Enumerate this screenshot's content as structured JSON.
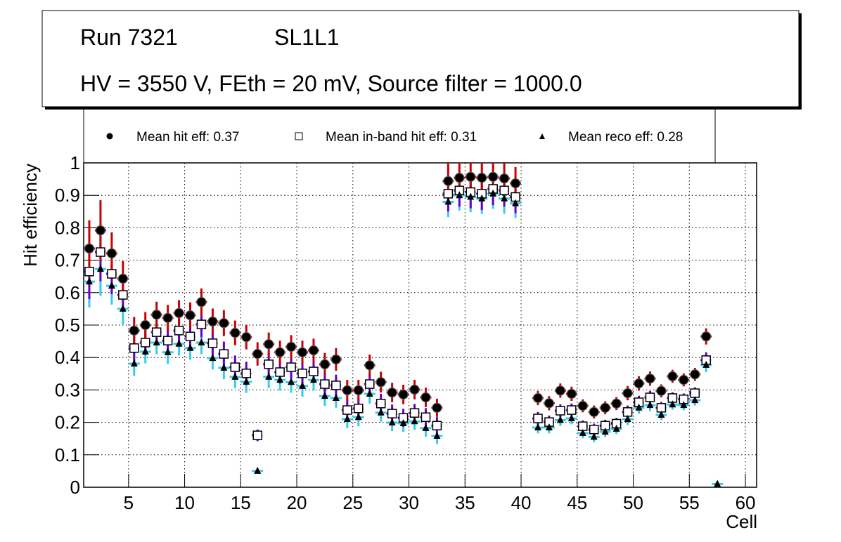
{
  "chart_data": {
    "type": "scatter",
    "title_box": {
      "line1_left": "Run 7321",
      "line1_right": "SL1L1",
      "line2": "HV = 3550 V, FEth = 20 mV, Source filter = 1000.0"
    },
    "xlabel": "Cell",
    "ylabel": "Hit efficiency",
    "xlim": [
      1,
      61
    ],
    "ylim": [
      0,
      1
    ],
    "xticks": [
      5,
      10,
      15,
      20,
      25,
      30,
      35,
      40,
      45,
      50,
      55,
      60
    ],
    "xtick_labels": [
      "5",
      "10",
      "15",
      "20",
      "25",
      "30",
      "35",
      "40",
      "45",
      "50",
      "55",
      "60"
    ],
    "yticks": [
      0,
      0.1,
      0.2,
      0.3,
      0.4,
      0.5,
      0.6,
      0.7,
      0.8,
      0.9,
      1
    ],
    "ytick_labels": [
      "0",
      "0.1",
      "0.2",
      "0.3",
      "0.4",
      "0.5",
      "0.6",
      "0.7",
      "0.8",
      "0.9",
      "1"
    ],
    "grid": true,
    "legend_position": "top",
    "legend": [
      {
        "marker": "filled-circle",
        "label": "Mean hit  eff: 0.37"
      },
      {
        "marker": "open-square",
        "label": "Mean in-band hit eff: 0.31"
      },
      {
        "marker": "filled-triangle",
        "label": "Mean reco eff: 0.28"
      }
    ],
    "colors": {
      "hit_error": "#cc0000",
      "inband_error": "#6600cc",
      "reco_error": "#33ccee",
      "marker": "#000000"
    },
    "series": [
      {
        "name": "Mean hit eff",
        "marker": "filled-circle",
        "x": [
          1.5,
          2.5,
          3.5,
          4.5,
          5.5,
          6.5,
          7.5,
          8.5,
          9.5,
          10.5,
          11.5,
          12.5,
          13.5,
          14.5,
          15.5,
          16.5,
          17.5,
          18.5,
          19.5,
          20.5,
          21.5,
          22.5,
          23.5,
          24.5,
          25.5,
          26.5,
          27.5,
          28.5,
          29.5,
          30.5,
          31.5,
          32.5,
          33.5,
          34.5,
          35.5,
          36.5,
          37.5,
          38.5,
          39.5,
          41.5,
          42.5,
          43.5,
          44.5,
          45.5,
          46.5,
          47.5,
          48.5,
          49.5,
          50.5,
          51.5,
          52.5,
          53.5,
          54.5,
          55.5,
          56.5
        ],
        "y": [
          0.736,
          0.792,
          0.721,
          0.643,
          0.483,
          0.5,
          0.532,
          0.522,
          0.537,
          0.53,
          0.571,
          0.511,
          0.506,
          0.476,
          0.463,
          0.411,
          0.441,
          0.416,
          0.433,
          0.416,
          0.422,
          0.379,
          0.394,
          0.299,
          0.299,
          0.376,
          0.324,
          0.292,
          0.286,
          0.301,
          0.277,
          0.245,
          0.944,
          0.954,
          0.957,
          0.954,
          0.957,
          0.952,
          0.937,
          0.275,
          0.259,
          0.298,
          0.288,
          0.251,
          0.232,
          0.245,
          0.258,
          0.29,
          0.32,
          0.335,
          0.297,
          0.342,
          0.331,
          0.348,
          0.465
        ],
        "yerr": [
          0.087,
          0.093,
          0.065,
          0.054,
          0.042,
          0.04,
          0.04,
          0.04,
          0.04,
          0.04,
          0.042,
          0.04,
          0.04,
          0.038,
          0.038,
          0.036,
          0.036,
          0.036,
          0.036,
          0.036,
          0.036,
          0.035,
          0.035,
          0.032,
          0.032,
          0.033,
          0.032,
          0.03,
          0.03,
          0.03,
          0.03,
          0.028,
          0.06,
          0.05,
          0.05,
          0.05,
          0.05,
          0.05,
          0.05,
          0.022,
          0.022,
          0.022,
          0.022,
          0.02,
          0.02,
          0.02,
          0.02,
          0.022,
          0.022,
          0.022,
          0.02,
          0.02,
          0.02,
          0.02,
          0.025
        ]
      },
      {
        "name": "Mean in-band hit eff",
        "marker": "open-square",
        "x": [
          1.5,
          2.5,
          3.5,
          4.5,
          5.5,
          6.5,
          7.5,
          8.5,
          9.5,
          10.5,
          11.5,
          12.5,
          13.5,
          14.5,
          15.5,
          16.5,
          17.5,
          18.5,
          19.5,
          20.5,
          21.5,
          22.5,
          23.5,
          24.5,
          25.5,
          26.5,
          27.5,
          28.5,
          29.5,
          30.5,
          31.5,
          32.5,
          33.5,
          34.5,
          35.5,
          36.5,
          37.5,
          38.5,
          39.5,
          41.5,
          42.5,
          43.5,
          44.5,
          45.5,
          46.5,
          47.5,
          48.5,
          49.5,
          50.5,
          51.5,
          52.5,
          53.5,
          54.5,
          55.5,
          56.5
        ],
        "y": [
          0.665,
          0.725,
          0.658,
          0.593,
          0.429,
          0.446,
          0.478,
          0.452,
          0.483,
          0.465,
          0.502,
          0.444,
          0.411,
          0.37,
          0.351,
          0.16,
          0.379,
          0.355,
          0.37,
          0.351,
          0.357,
          0.318,
          0.314,
          0.238,
          0.243,
          0.318,
          0.258,
          0.227,
          0.214,
          0.229,
          0.216,
          0.19,
          0.905,
          0.915,
          0.91,
          0.905,
          0.92,
          0.915,
          0.895,
          0.212,
          0.201,
          0.236,
          0.238,
          0.188,
          0.178,
          0.19,
          0.196,
          0.232,
          0.262,
          0.277,
          0.245,
          0.275,
          0.271,
          0.29,
          0.392
        ],
        "yerr": [
          0.085,
          0.09,
          0.063,
          0.052,
          0.04,
          0.038,
          0.038,
          0.038,
          0.038,
          0.038,
          0.04,
          0.038,
          0.038,
          0.036,
          0.036,
          0.018,
          0.035,
          0.035,
          0.035,
          0.035,
          0.035,
          0.033,
          0.033,
          0.03,
          0.03,
          0.032,
          0.03,
          0.028,
          0.028,
          0.028,
          0.028,
          0.026,
          0.055,
          0.05,
          0.05,
          0.05,
          0.05,
          0.05,
          0.05,
          0.02,
          0.02,
          0.02,
          0.02,
          0.018,
          0.018,
          0.018,
          0.018,
          0.02,
          0.02,
          0.02,
          0.018,
          0.018,
          0.018,
          0.018,
          0.024
        ]
      },
      {
        "name": "Mean reco eff",
        "marker": "filled-triangle",
        "x": [
          1.5,
          2.5,
          3.5,
          4.5,
          5.5,
          6.5,
          7.5,
          8.5,
          9.5,
          10.5,
          11.5,
          12.5,
          13.5,
          14.5,
          15.5,
          16.5,
          17.5,
          18.5,
          19.5,
          20.5,
          21.5,
          22.5,
          23.5,
          24.5,
          25.5,
          26.5,
          27.5,
          28.5,
          29.5,
          30.5,
          31.5,
          32.5,
          33.5,
          34.5,
          35.5,
          36.5,
          37.5,
          38.5,
          39.5,
          41.5,
          42.5,
          43.5,
          44.5,
          45.5,
          46.5,
          47.5,
          48.5,
          49.5,
          50.5,
          51.5,
          52.5,
          53.5,
          54.5,
          55.5,
          56.5,
          57.5
        ],
        "y": [
          0.634,
          0.673,
          0.621,
          0.55,
          0.381,
          0.418,
          0.446,
          0.416,
          0.442,
          0.429,
          0.446,
          0.398,
          0.368,
          0.34,
          0.325,
          0.05,
          0.34,
          0.331,
          0.324,
          0.312,
          0.331,
          0.281,
          0.275,
          0.21,
          0.216,
          0.288,
          0.23,
          0.199,
          0.197,
          0.203,
          0.182,
          0.158,
          0.88,
          0.9,
          0.895,
          0.89,
          0.905,
          0.89,
          0.875,
          0.184,
          0.184,
          0.207,
          0.212,
          0.167,
          0.155,
          0.171,
          0.18,
          0.21,
          0.245,
          0.253,
          0.223,
          0.255,
          0.253,
          0.268,
          0.377,
          0.01
        ],
        "yerr": [
          0.08,
          0.083,
          0.058,
          0.048,
          0.038,
          0.036,
          0.036,
          0.036,
          0.036,
          0.036,
          0.036,
          0.035,
          0.035,
          0.034,
          0.034,
          0.004,
          0.034,
          0.033,
          0.033,
          0.033,
          0.033,
          0.03,
          0.03,
          0.028,
          0.028,
          0.03,
          0.028,
          0.026,
          0.026,
          0.026,
          0.026,
          0.024,
          0.047,
          0.047,
          0.047,
          0.047,
          0.047,
          0.047,
          0.045,
          0.018,
          0.018,
          0.018,
          0.018,
          0.016,
          0.016,
          0.016,
          0.016,
          0.018,
          0.018,
          0.018,
          0.016,
          0.016,
          0.016,
          0.016,
          0.022,
          0.004
        ]
      }
    ]
  }
}
